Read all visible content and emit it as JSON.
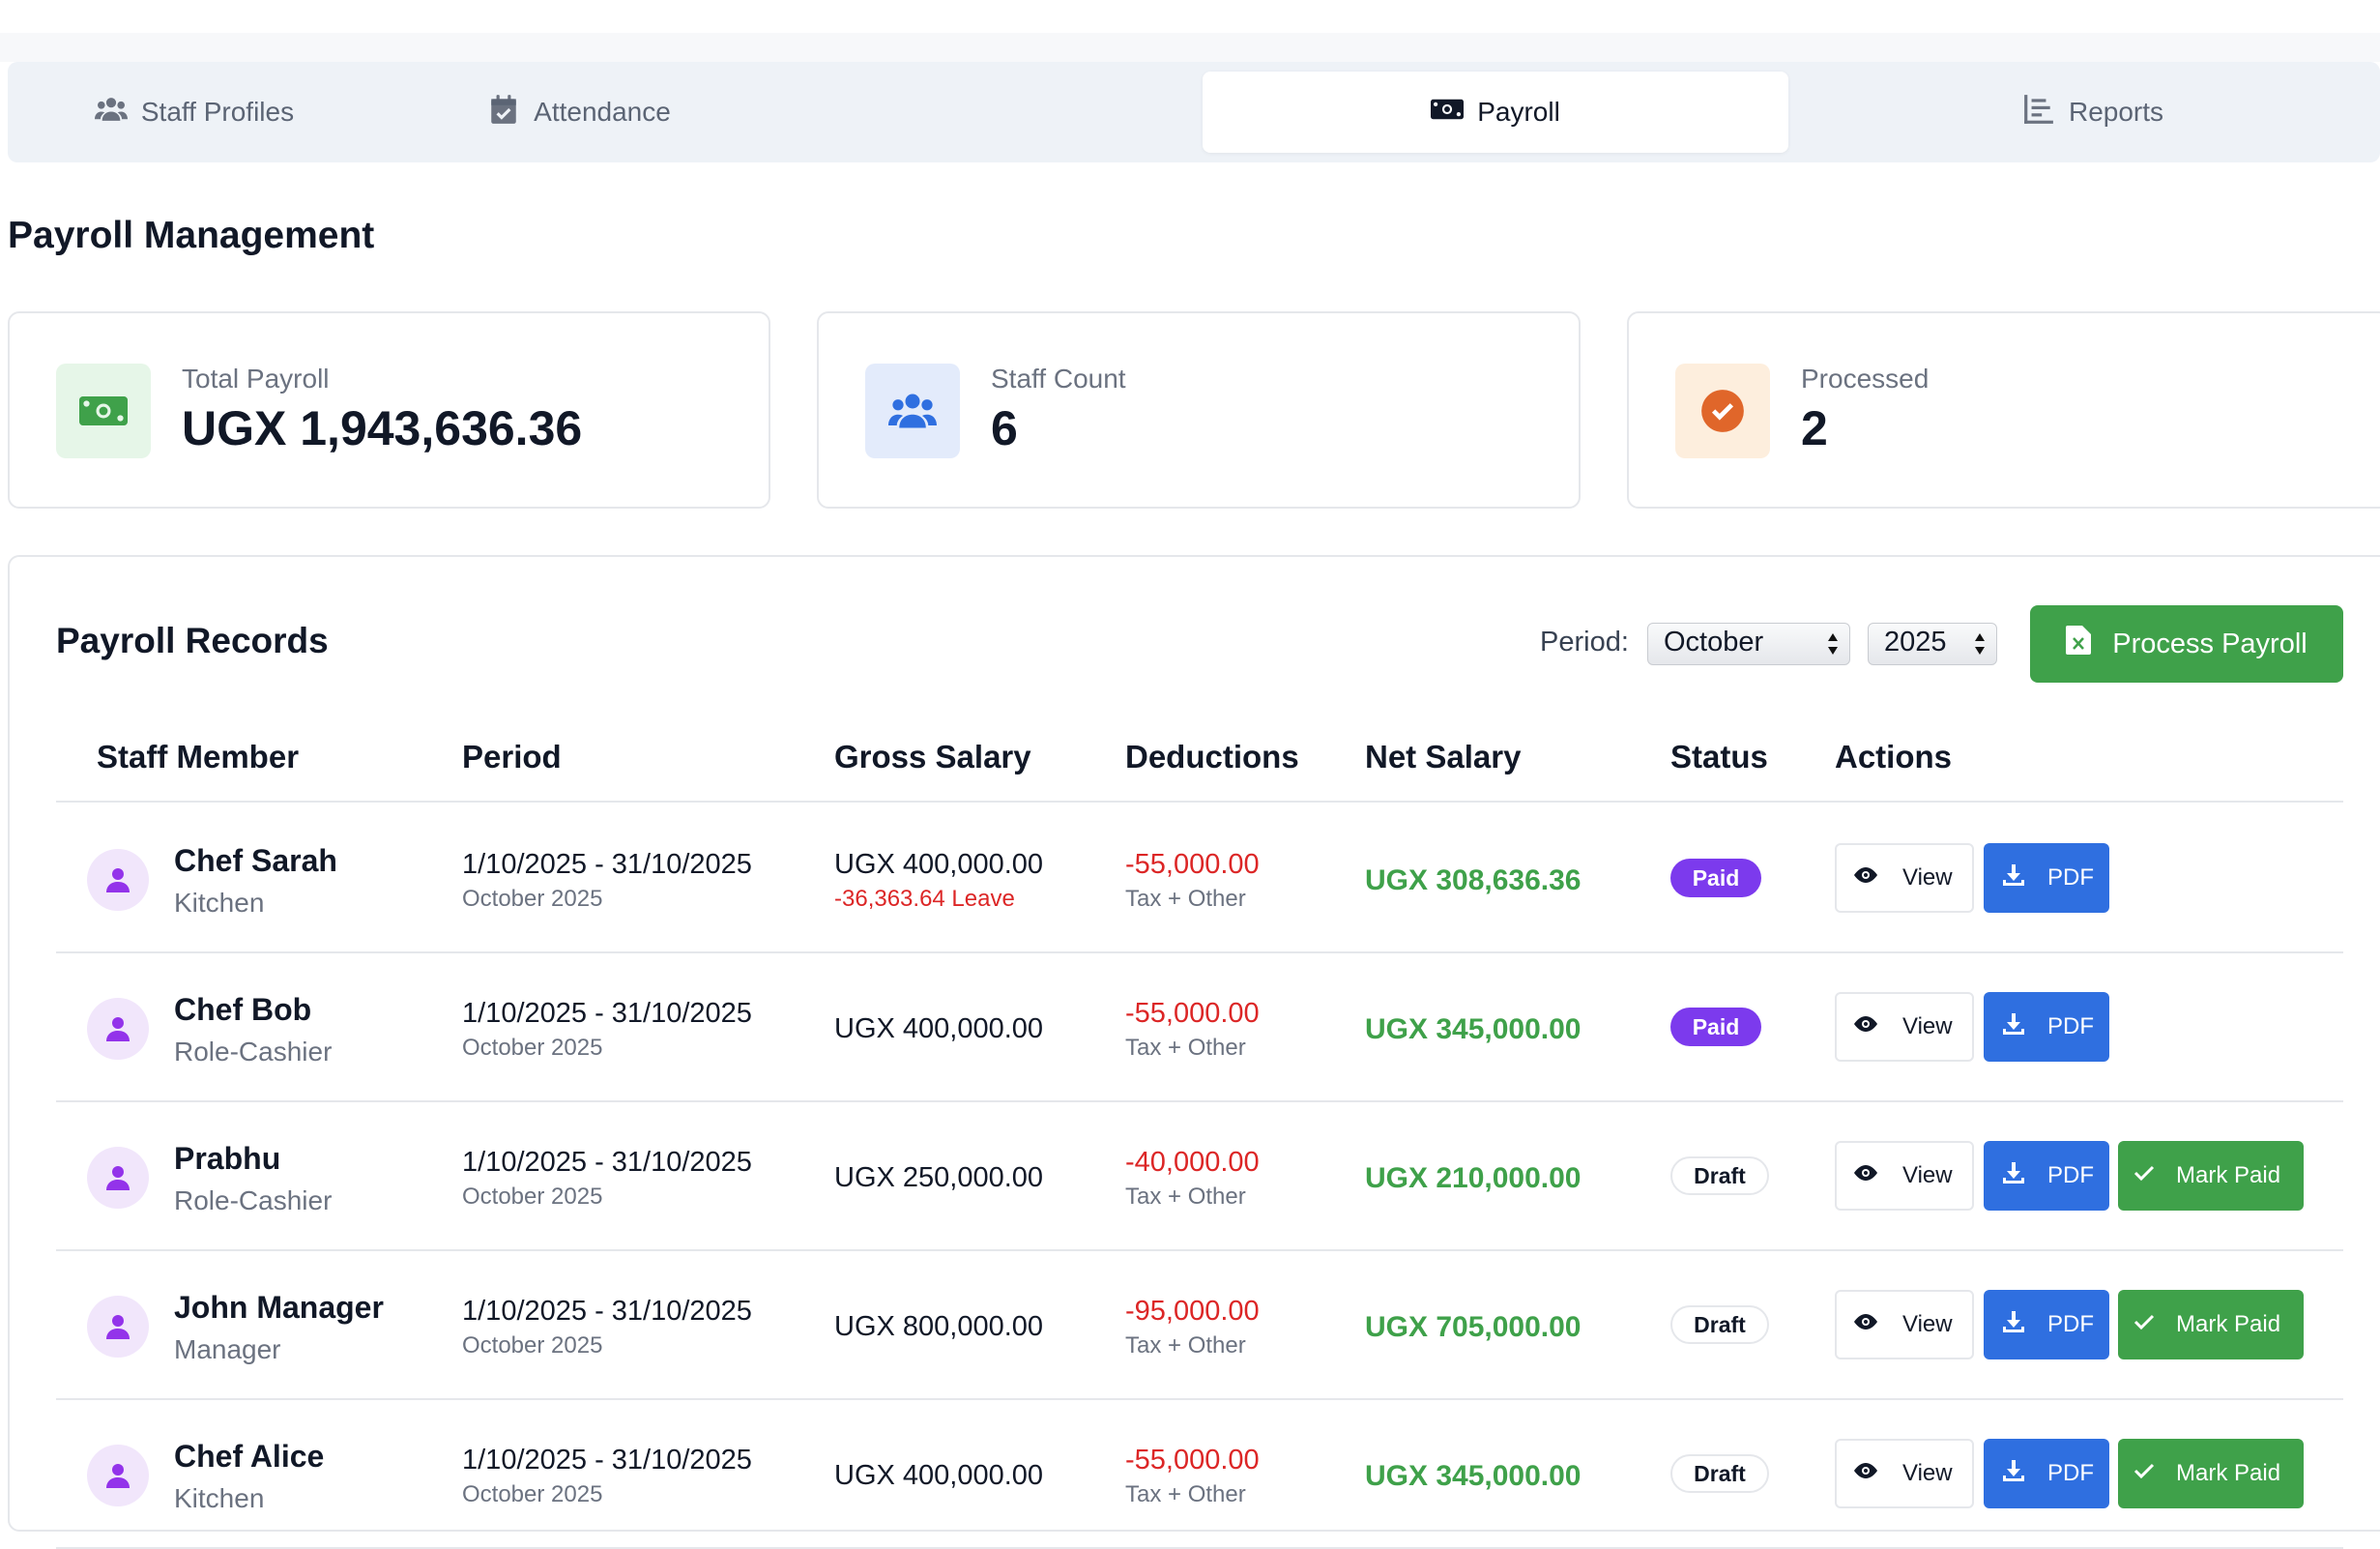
{
  "tabs": [
    {
      "label": "Staff Profiles",
      "icon": "users-icon"
    },
    {
      "label": "Attendance",
      "icon": "calendar-check-icon"
    },
    {
      "label": "Payroll",
      "icon": "money-bill-icon",
      "active": true
    },
    {
      "label": "Reports",
      "icon": "chart-bar-icon"
    }
  ],
  "page": {
    "title": "Payroll Management"
  },
  "stats": [
    {
      "label": "Total Payroll",
      "value": "UGX 1,943,636.36",
      "icon": "money-bill-icon",
      "color": "#3fa14a"
    },
    {
      "label": "Staff Count",
      "value": "6",
      "icon": "users-icon",
      "color": "#2f6fe0"
    },
    {
      "label": "Processed",
      "value": "2",
      "icon": "check-circle-icon",
      "color": "#e0662a"
    }
  ],
  "records": {
    "title": "Payroll Records",
    "period_label": "Period:",
    "month": "October",
    "year": "2025",
    "process_button": "Process Payroll",
    "columns": [
      "Staff Member",
      "Period",
      "Gross Salary",
      "Deductions",
      "Net Salary",
      "Status",
      "Actions"
    ],
    "view_label": "View",
    "pdf_label": "PDF",
    "mark_paid_label": "Mark Paid",
    "rows": [
      {
        "name": "Chef Sarah",
        "role": "Kitchen",
        "period": "1/10/2025 - 31/10/2025",
        "period_sub": "October 2025",
        "gross": "UGX 400,000.00",
        "gross_note": "-36,363.64 Leave",
        "deductions": "-55,000.00",
        "deductions_sub": "Tax + Other",
        "net": "UGX 308,636.36",
        "status": "Paid"
      },
      {
        "name": "Chef Bob",
        "role": "Role-Cashier",
        "period": "1/10/2025 - 31/10/2025",
        "period_sub": "October 2025",
        "gross": "UGX 400,000.00",
        "gross_note": "",
        "deductions": "-55,000.00",
        "deductions_sub": "Tax + Other",
        "net": "UGX 345,000.00",
        "status": "Paid"
      },
      {
        "name": "Prabhu",
        "role": "Role-Cashier",
        "period": "1/10/2025 - 31/10/2025",
        "period_sub": "October 2025",
        "gross": "UGX 250,000.00",
        "gross_note": "",
        "deductions": "-40,000.00",
        "deductions_sub": "Tax + Other",
        "net": "UGX 210,000.00",
        "status": "Draft"
      },
      {
        "name": "John Manager",
        "role": "Manager",
        "period": "1/10/2025 - 31/10/2025",
        "period_sub": "October 2025",
        "gross": "UGX 800,000.00",
        "gross_note": "",
        "deductions": "-95,000.00",
        "deductions_sub": "Tax + Other",
        "net": "UGX 705,000.00",
        "status": "Draft"
      },
      {
        "name": "Chef Alice",
        "role": "Kitchen",
        "period": "1/10/2025 - 31/10/2025",
        "period_sub": "October 2025",
        "gross": "UGX 400,000.00",
        "gross_note": "",
        "deductions": "-55,000.00",
        "deductions_sub": "Tax + Other",
        "net": "UGX 345,000.00",
        "status": "Draft"
      }
    ]
  }
}
